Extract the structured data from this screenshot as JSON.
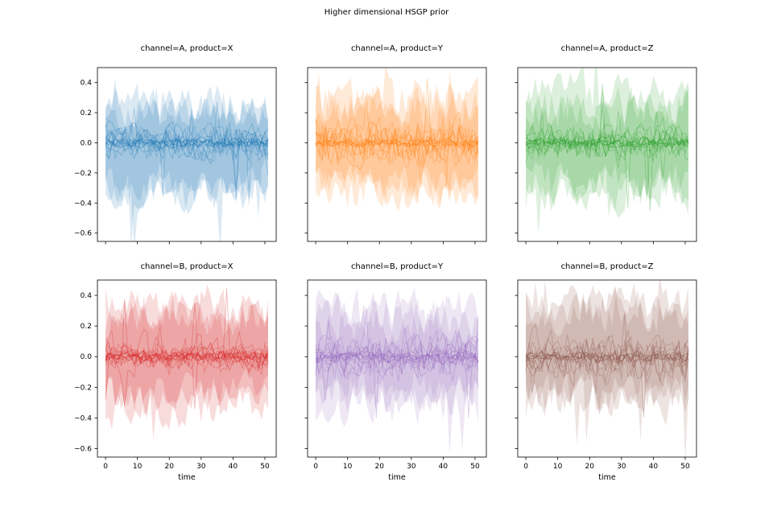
{
  "figure": {
    "title": "Higher dimensional HSGP prior",
    "background": "#ffffff",
    "text_color": "#000000"
  },
  "chart_data": {
    "type": "line",
    "subtype": "prior-samples-spaghetti-with-uncertainty-bands",
    "title": "Higher dimensional HSGP prior",
    "xlabel": "time",
    "grid": "off",
    "legend": "none",
    "x_range": [
      0,
      51
    ],
    "xlim": [
      -2.55,
      53.55
    ],
    "ylim": [
      -0.655,
      0.5
    ],
    "x_ticks": [
      0,
      10,
      20,
      30,
      40,
      50
    ],
    "y_ticks": [
      0.4,
      0.2,
      0.0,
      -0.2,
      -0.4,
      -0.6
    ],
    "y_tick_labels": [
      "0.4",
      "0.2",
      "0.0",
      "−0.2",
      "−0.4",
      "−0.6"
    ],
    "x_tick_labels": [
      "0",
      "10",
      "20",
      "30",
      "40",
      "50"
    ],
    "n_points": 52,
    "samples_per_subplot": {
      "n_bands": 3,
      "n_lines": 9,
      "n_core_lines": 5,
      "band_fill_opacity": 0.16,
      "line_opacity": 0.3,
      "core_line_opacity": 0.45,
      "band_center_range": [
        0.22,
        0.33
      ],
      "line_amplitude_range": [
        0.05,
        0.16
      ],
      "core_amplitude_range": [
        0.015,
        0.045
      ]
    },
    "subplots": [
      {
        "row": 0,
        "col": 0,
        "title": "channel=A, product=X",
        "color": "#1f77b4",
        "seed": 101
      },
      {
        "row": 0,
        "col": 1,
        "title": "channel=A, product=Y",
        "color": "#ff7f0e",
        "seed": 202
      },
      {
        "row": 0,
        "col": 2,
        "title": "channel=A, product=Z",
        "color": "#2ca02c",
        "seed": 303
      },
      {
        "row": 1,
        "col": 0,
        "title": "channel=B, product=X",
        "color": "#d62728",
        "seed": 404
      },
      {
        "row": 1,
        "col": 1,
        "title": "channel=B, product=Y",
        "color": "#9467bd",
        "seed": 505
      },
      {
        "row": 1,
        "col": 2,
        "title": "channel=B, product=Z",
        "color": "#8c564b",
        "seed": 606
      }
    ]
  }
}
